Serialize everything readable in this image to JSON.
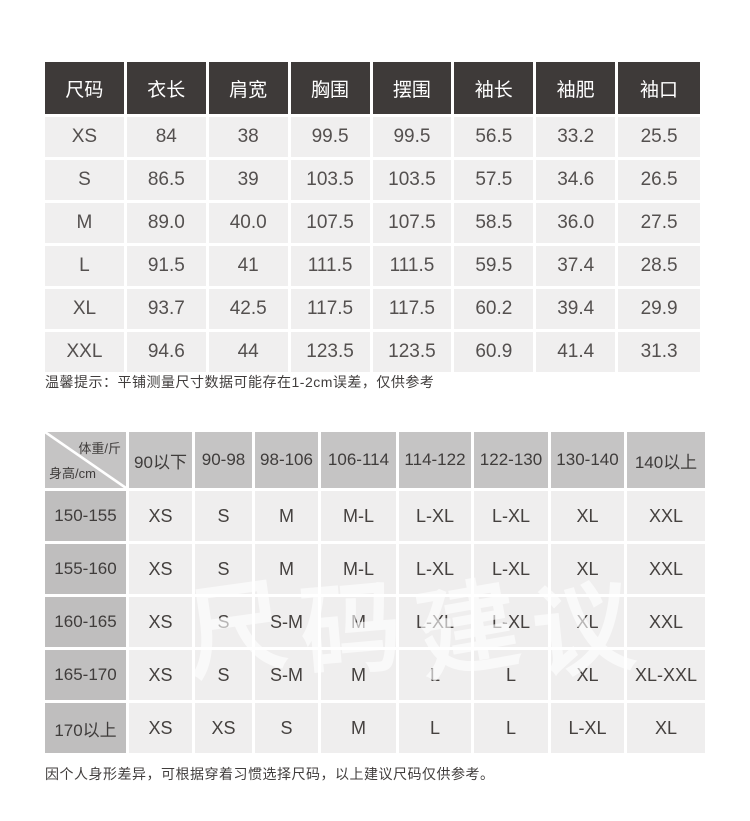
{
  "colors": {
    "size_table_header_bg": "#3e3a39",
    "size_table_header_fg": "#ffffff",
    "size_table_row_bg": "#f0efef",
    "rec_table_header_bg": "#c5c4c4",
    "rec_table_rowheader_bg": "#bfbebe",
    "rec_table_cell_bg": "#efeeee"
  },
  "size_table": {
    "columns": [
      "尺码",
      "衣长",
      "肩宽",
      "胸围",
      "摆围",
      "袖长",
      "袖肥",
      "袖口"
    ],
    "rows": [
      [
        "XS",
        "84",
        "38",
        "99.5",
        "99.5",
        "56.5",
        "33.2",
        "25.5"
      ],
      [
        "S",
        "86.5",
        "39",
        "103.5",
        "103.5",
        "57.5",
        "34.6",
        "26.5"
      ],
      [
        "M",
        "89.0",
        "40.0",
        "107.5",
        "107.5",
        "58.5",
        "36.0",
        "27.5"
      ],
      [
        "L",
        "91.5",
        "41",
        "111.5",
        "111.5",
        "59.5",
        "37.4",
        "28.5"
      ],
      [
        "XL",
        "93.7",
        "42.5",
        "117.5",
        "117.5",
        "60.2",
        "39.4",
        "29.9"
      ],
      [
        "XXL",
        "94.6",
        "44",
        "123.5",
        "123.5",
        "60.9",
        "41.4",
        "31.3"
      ]
    ],
    "note": "温馨提示：平铺测量尺寸数据可能存在1-2cm误差，仅供参考"
  },
  "recommend_table": {
    "corner": {
      "top_right": "体重/斤",
      "bottom_left": "身高/cm"
    },
    "weight_columns": [
      "90以下",
      "90-98",
      "98-106",
      "106-114",
      "114-122",
      "122-130",
      "130-140",
      "140以上"
    ],
    "rows": [
      {
        "height": "150-155",
        "sizes": [
          "XS",
          "S",
          "M",
          "M-L",
          "L-XL",
          "L-XL",
          "XL",
          "XXL"
        ]
      },
      {
        "height": "155-160",
        "sizes": [
          "XS",
          "S",
          "M",
          "M-L",
          "L-XL",
          "L-XL",
          "XL",
          "XXL"
        ]
      },
      {
        "height": "160-165",
        "sizes": [
          "XS",
          "S",
          "S-M",
          "M",
          "L-XL",
          "L-XL",
          "XL",
          "XXL"
        ]
      },
      {
        "height": "165-170",
        "sizes": [
          "XS",
          "S",
          "S-M",
          "M",
          "L",
          "L",
          "XL",
          "XL-XXL"
        ]
      },
      {
        "height": "170以上",
        "sizes": [
          "XS",
          "XS",
          "S",
          "M",
          "L",
          "L",
          "L-XL",
          "XL"
        ]
      }
    ],
    "watermark": "尺码建议"
  },
  "footer_note": "因个人身形差异，可根据穿着习惯选择尺码，以上建议尺码仅供参考。"
}
